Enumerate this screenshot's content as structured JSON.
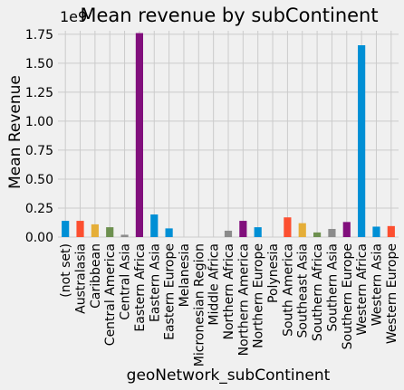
{
  "chart_data": {
    "type": "bar",
    "title": "Mean revenue by subContinent",
    "xlabel": "geoNetwork_subContinent",
    "ylabel": "Mean Revenue",
    "offset_label": "1e9",
    "ylim": [
      0,
      1.78
    ],
    "yticks": [
      "0.00",
      "0.25",
      "0.50",
      "0.75",
      "1.00",
      "1.25",
      "1.50",
      "1.75"
    ],
    "ytick_values": [
      0,
      0.25,
      0.5,
      0.75,
      1.0,
      1.25,
      1.5,
      1.75
    ],
    "grid": true,
    "categories": [
      "(not set)",
      "Australasia",
      "Caribbean",
      "Central America",
      "Central Asia",
      "Eastern Africa",
      "Eastern Asia",
      "Eastern Europe",
      "Melanesia",
      "Micronesian Region",
      "Middle Africa",
      "Northern Africa",
      "Northern America",
      "Northern Europe",
      "Polynesia",
      "South America",
      "Southeast Asia",
      "Southern Africa",
      "Southern Asia",
      "Southern Europe",
      "Western Africa",
      "Western Asia",
      "Western Europe"
    ],
    "values": [
      0.14,
      0.14,
      0.11,
      0.085,
      0.02,
      1.76,
      0.195,
      0.075,
      0.0,
      0.0,
      0.0,
      0.055,
      0.14,
      0.085,
      0.0,
      0.17,
      0.12,
      0.04,
      0.07,
      0.13,
      1.655,
      0.09,
      0.095
    ],
    "colors": [
      "#008fd5",
      "#fc4f30",
      "#e5ae38",
      "#6d904f",
      "#8b8b8b",
      "#810f7c",
      "#008fd5",
      "#008fd5",
      "#008fd5",
      "#008fd5",
      "#008fd5",
      "#8b8b8b",
      "#810f7c",
      "#008fd5",
      "#008fd5",
      "#fc4f30",
      "#e5ae38",
      "#6d904f",
      "#8b8b8b",
      "#810f7c",
      "#008fd5",
      "#008fd5",
      "#fc4f30"
    ]
  }
}
